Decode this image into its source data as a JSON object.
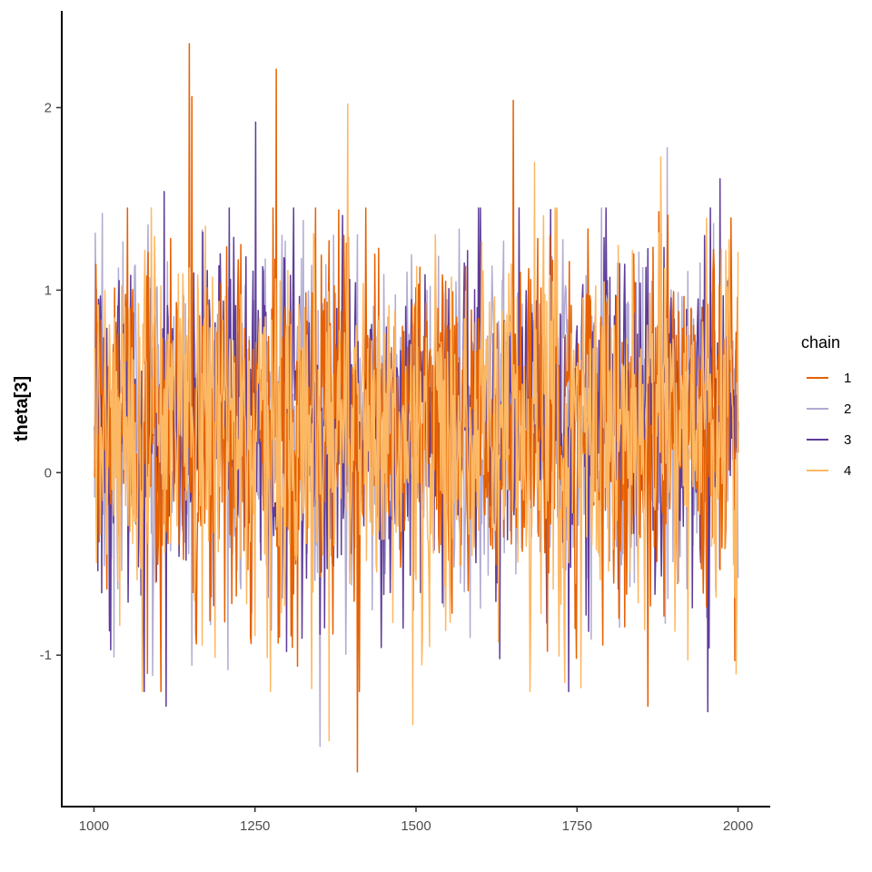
{
  "chart_data": {
    "type": "line",
    "title": "",
    "xlabel": "",
    "ylabel": "theta[3]",
    "xlim": [
      950,
      2050
    ],
    "ylim": [
      -1.83,
      2.53
    ],
    "x_ticks": [
      1000,
      1250,
      1500,
      1750,
      2000
    ],
    "x_tick_labels": [
      "1000",
      "1250",
      "1500",
      "1750",
      "2000"
    ],
    "y_ticks": [
      -1,
      0,
      1,
      2
    ],
    "y_tick_labels": [
      "-1",
      "0",
      "1",
      "2"
    ],
    "grid": false,
    "legend": {
      "title": "chain",
      "placement": "right"
    },
    "series": [
      {
        "name": "1",
        "color": "#e66101",
        "x_start": 1001,
        "x_end": 2000,
        "mean": 0.27,
        "sd": 0.45,
        "extremes": [
          [
            1148,
            2.35
          ],
          [
            1283,
            2.21
          ],
          [
            1152,
            2.06
          ],
          [
            1651,
            2.04
          ],
          [
            1409,
            -1.64
          ],
          [
            1995,
            -1.03
          ],
          [
            1860,
            -1.28
          ],
          [
            1083,
            -1.1
          ]
        ]
      },
      {
        "name": "2",
        "color": "#b2abd2",
        "x_start": 1001,
        "x_end": 2000,
        "mean": 0.26,
        "sd": 0.45,
        "extremes": [
          [
            1890,
            1.78
          ],
          [
            1351,
            -1.5
          ],
          [
            1013,
            1.42
          ],
          [
            1208,
            -1.08
          ],
          [
            1372,
            1.3
          ]
        ]
      },
      {
        "name": "3",
        "color": "#5e3c99",
        "x_start": 1001,
        "x_end": 2000,
        "mean": 0.25,
        "sd": 0.45,
        "extremes": [
          [
            1251,
            1.92
          ],
          [
            1112,
            -1.28
          ],
          [
            1953,
            -1.31
          ],
          [
            1972,
            1.61
          ],
          [
            1109,
            1.54
          ],
          [
            1299,
            -0.98
          ]
        ]
      },
      {
        "name": "4",
        "color": "#fdb863",
        "x_start": 1001,
        "x_end": 2000,
        "mean": 0.28,
        "sd": 0.45,
        "extremes": [
          [
            1394,
            2.02
          ],
          [
            1365,
            -1.47
          ],
          [
            1495,
            -1.38
          ],
          [
            1684,
            1.7
          ],
          [
            1880,
            1.73
          ],
          [
            2000,
            1.21
          ],
          [
            1731,
            -1.15
          ]
        ]
      }
    ]
  }
}
